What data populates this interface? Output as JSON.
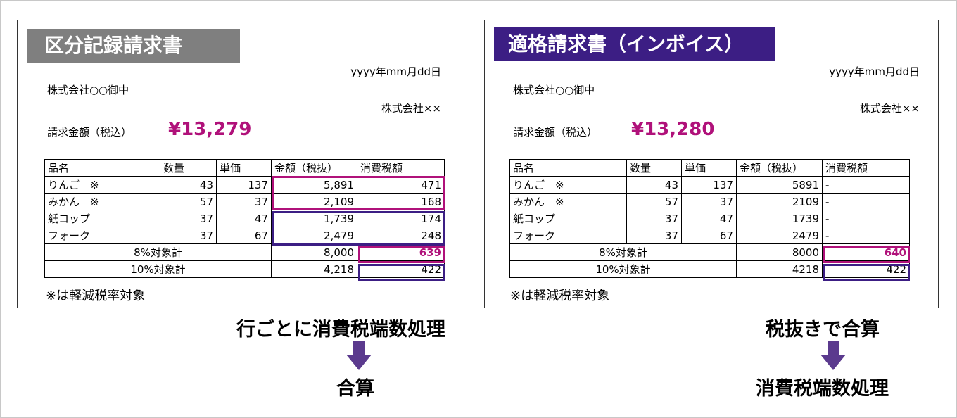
{
  "left": {
    "title": "区分記録請求書",
    "date": "yyyy年mm月dd日",
    "client": "株式会社○○御中",
    "issuer": "株式会社××",
    "amount_label": "請求金額（税込）",
    "amount_value": "¥13,279",
    "headers": [
      "品名",
      "数量",
      "単価",
      "金額（税抜）",
      "消費税額"
    ],
    "rows": [
      [
        "りんご　※",
        "43",
        "137",
        "5,891",
        "471"
      ],
      [
        "みかん　※",
        "57",
        "37",
        "2,109",
        "168"
      ],
      [
        "紙コップ",
        "37",
        "47",
        "1,739",
        "174"
      ],
      [
        "フォーク",
        "37",
        "67",
        "2,479",
        "248"
      ]
    ],
    "subtotals": [
      [
        "8%対象計",
        "8,000",
        "639"
      ],
      [
        "10%対象計",
        "4,218",
        "422"
      ]
    ],
    "note": "※は軽減税率対象",
    "caption_top": "行ごとに消費税端数処理",
    "caption_bottom": "合算"
  },
  "right": {
    "title": "適格請求書（インボイス）",
    "date": "yyyy年mm月dd日",
    "client": "株式会社○○御中",
    "issuer": "株式会社××",
    "amount_label": "請求金額（税込）",
    "amount_value": "¥13,280",
    "headers": [
      "品名",
      "数量",
      "単価",
      "金額（税抜）",
      "消費税額"
    ],
    "rows": [
      [
        "りんご　※",
        "43",
        "137",
        "5891",
        "-"
      ],
      [
        "みかん　※",
        "57",
        "37",
        "2109",
        "-"
      ],
      [
        "紙コップ",
        "37",
        "47",
        "1739",
        "-"
      ],
      [
        "フォーク",
        "37",
        "67",
        "2479",
        "-"
      ]
    ],
    "subtotals": [
      [
        "8%対象計",
        "8000",
        "640"
      ],
      [
        "10%対象計",
        "4218",
        "422"
      ]
    ],
    "note": "※は軽減税率対象",
    "caption_top": "税抜きで合算",
    "caption_bottom": "消費税端数処理"
  },
  "colors": {
    "accent_pink": "#b0117a",
    "accent_purple": "#3c1e84",
    "title_gray": "#7f7f7f"
  }
}
